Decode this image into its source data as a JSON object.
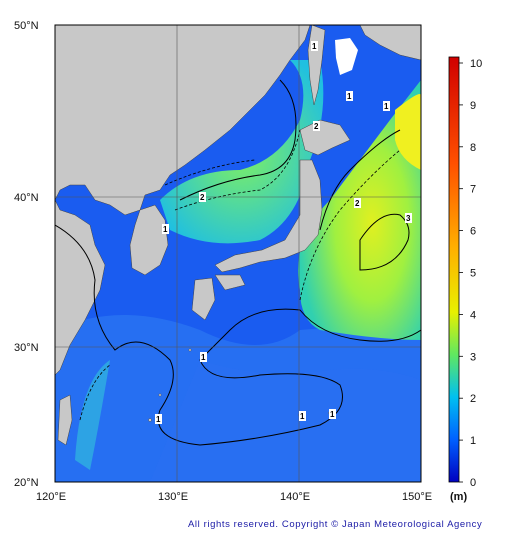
{
  "map": {
    "lat_labels": [
      "50°N",
      "40°N",
      "30°N",
      "20°N"
    ],
    "lon_labels": [
      "120°E",
      "130°E",
      "140°E",
      "150°E"
    ],
    "extent": {
      "lon": [
        120,
        150
      ],
      "lat": [
        20,
        50
      ]
    },
    "grid": true,
    "contour_labels": [
      "1",
      "1",
      "1",
      "2",
      "2",
      "1",
      "2",
      "3",
      "1",
      "1",
      "1",
      "1"
    ]
  },
  "colorbar": {
    "ticks": [
      "0",
      "1",
      "2",
      "3",
      "4",
      "5",
      "6",
      "7",
      "8",
      "9",
      "10"
    ],
    "unit": "(m)",
    "min": 0,
    "max": 10,
    "colors": [
      "#0000c8",
      "#0050ff",
      "#00a0ff",
      "#00d8e0",
      "#40e890",
      "#90f050",
      "#e0f020",
      "#ffd000",
      "#ff9000",
      "#ff4000",
      "#e00000"
    ]
  },
  "credit": "All rights reserved. Copyright © Japan Meteorological Agency",
  "colors": {
    "land": "#c8c8c8",
    "sea_low": "#1040f0",
    "sea_high": "#e8f020"
  }
}
